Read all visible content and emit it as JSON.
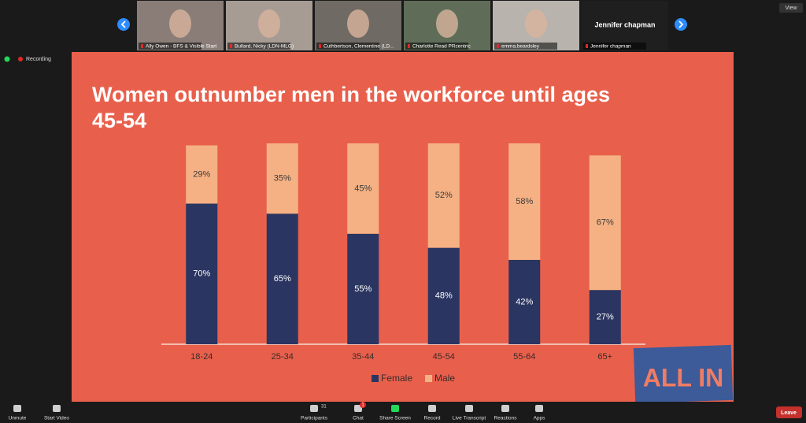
{
  "meeting": {
    "view": "View",
    "recording": "Recording",
    "participants": [
      "Ally Owen - BFS & Visible Start",
      "Bullard, Nicky (LDN-MLG)",
      "Cuthbertson, Clementine (LD...",
      "Charlotte Read PRcentric",
      "emma.beardsley",
      "Jennifer chapman"
    ],
    "featured_name": "Jennifer chapman"
  },
  "chart_data": {
    "type": "bar",
    "stacked": true,
    "title": "Women outnumber men in the workforce until ages 45-54",
    "categories": [
      "18-24",
      "25-34",
      "35-44",
      "45-54",
      "55-64",
      "65+"
    ],
    "series": [
      {
        "name": "Female",
        "color": "#2b3561",
        "values": [
          70,
          65,
          55,
          48,
          42,
          27
        ],
        "value_labels": [
          "70%",
          "65%",
          "55%",
          "48%",
          "42%",
          "27%"
        ]
      },
      {
        "name": "Male",
        "color": "#f5b183",
        "values": [
          29,
          35,
          45,
          52,
          58,
          67
        ],
        "value_labels": [
          "29%",
          "35%",
          "45%",
          "52%",
          "58%",
          "67%"
        ]
      }
    ],
    "legend": "bottom"
  },
  "logo": {
    "text": "ALL IN"
  },
  "toolbar": {
    "items": [
      "Unmute",
      "Start Video",
      "Participants",
      "Chat",
      "Share Screen",
      "Record",
      "Live Transcript",
      "Reactions",
      "Apps"
    ],
    "participant_count": 31,
    "chat_badge": 1,
    "leave": "Leave"
  }
}
